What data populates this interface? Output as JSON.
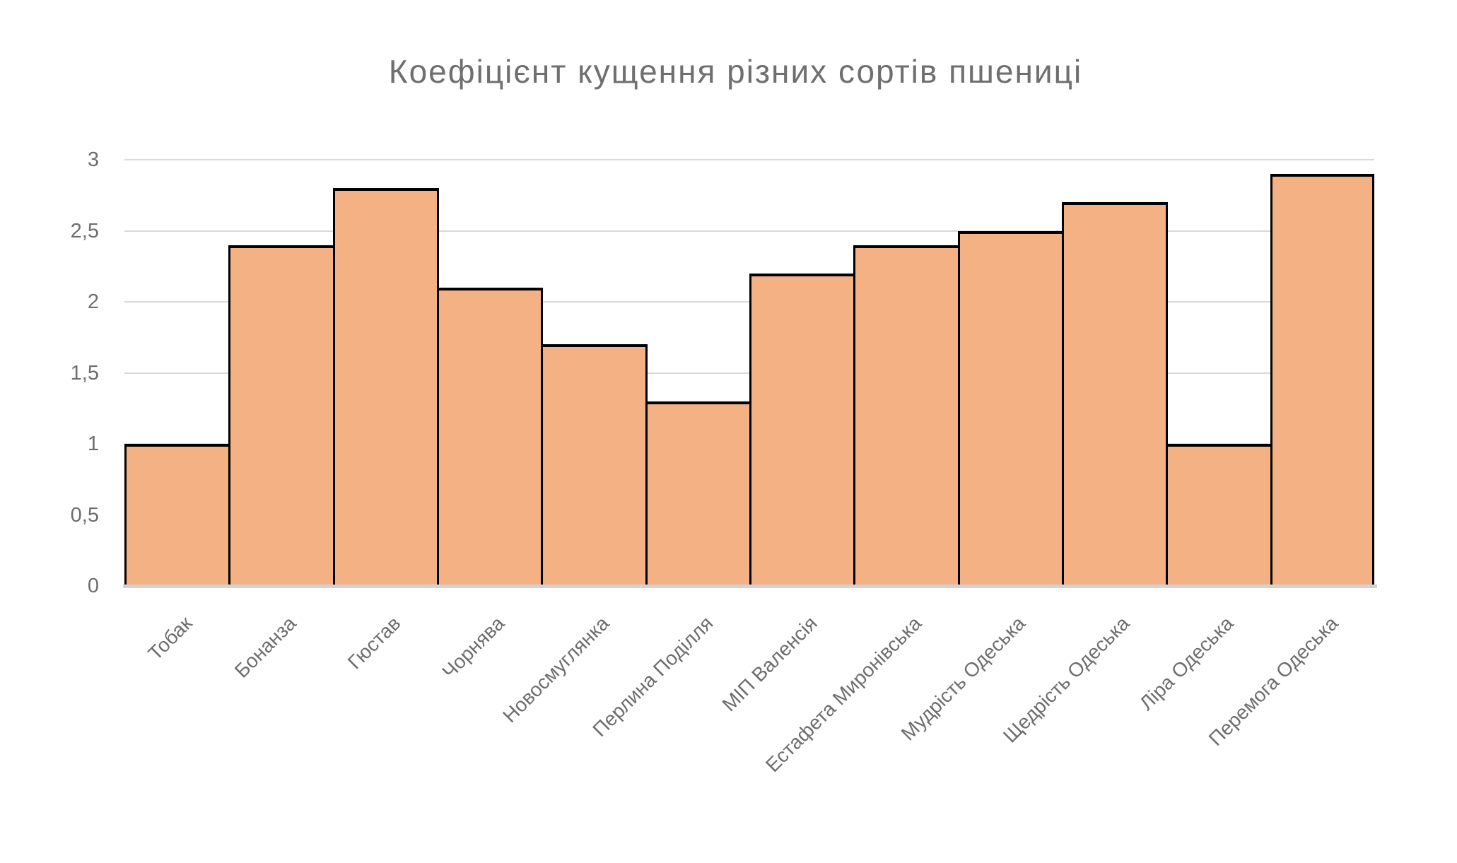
{
  "chart_data": {
    "type": "bar",
    "title": "Коефіцієнт кущення різних сортів пшениці",
    "categories": [
      "Тобак",
      "Бонанза",
      "Гюстав",
      "Чорнява",
      "Новосмуглянка",
      "Перлина Поділля",
      "МІП Валенсія",
      "Естафета Миронівська",
      "Мудрість Одеська",
      "Щедрість Одеська",
      "Ліра Одеська",
      "Перемога Одеська"
    ],
    "values": [
      1,
      2.4,
      2.8,
      2.1,
      1.7,
      1.3,
      2.2,
      2.4,
      2.5,
      2.7,
      1,
      2.9
    ],
    "xlabel": "",
    "ylabel": "",
    "ylim": [
      0,
      3
    ],
    "ytick_step": 0.5,
    "ytick_labels": [
      "0",
      "0,5",
      "1",
      "1,5",
      "2",
      "2,5",
      "3"
    ],
    "grid": true,
    "legend_position": "none",
    "decimal_separator": ",",
    "colors": {
      "bar_fill": "#F4B183",
      "bar_border": "#000000",
      "gridline": "#D9D9D9",
      "axis_line": "#D3D3D3",
      "text": "#6E6E6E",
      "background": "#FFFFFF"
    }
  }
}
